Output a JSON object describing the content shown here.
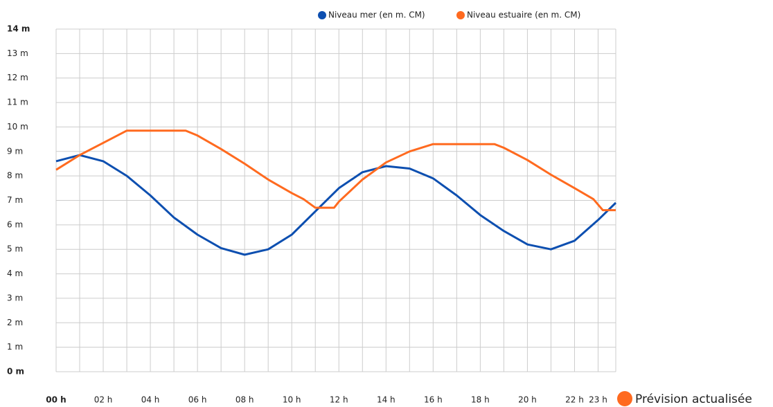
{
  "chart_data": {
    "type": "line",
    "xlim": [
      0,
      23.75
    ],
    "xticks": [
      {
        "value": 0,
        "label": "00 h"
      },
      {
        "value": 2,
        "label": "02 h"
      },
      {
        "value": 4,
        "label": "04 h"
      },
      {
        "value": 6,
        "label": "06 h"
      },
      {
        "value": 8,
        "label": "08 h"
      },
      {
        "value": 10,
        "label": "10 h"
      },
      {
        "value": 12,
        "label": "12 h"
      },
      {
        "value": 14,
        "label": "14 h"
      },
      {
        "value": 16,
        "label": "16 h"
      },
      {
        "value": 18,
        "label": "18 h"
      },
      {
        "value": 20,
        "label": "20 h"
      },
      {
        "value": 22,
        "label": "22 h"
      },
      {
        "value": 23,
        "label": "23 h"
      }
    ],
    "xminor_ticks": [
      1,
      3,
      5,
      7,
      9,
      11,
      13,
      15,
      17,
      19,
      21
    ],
    "ylim": [
      0,
      14
    ],
    "yticks": [
      {
        "value": 0,
        "label": "0 m"
      },
      {
        "value": 1,
        "label": "1 m"
      },
      {
        "value": 2,
        "label": "2 m"
      },
      {
        "value": 3,
        "label": "3 m"
      },
      {
        "value": 4,
        "label": "4 m"
      },
      {
        "value": 5,
        "label": "5 m"
      },
      {
        "value": 6,
        "label": "6 m"
      },
      {
        "value": 7,
        "label": "7 m"
      },
      {
        "value": 8,
        "label": "8 m"
      },
      {
        "value": 9,
        "label": "9 m"
      },
      {
        "value": 10,
        "label": "10 m"
      },
      {
        "value": 11,
        "label": "11 m"
      },
      {
        "value": 12,
        "label": "12 m"
      },
      {
        "value": 13,
        "label": "13 m"
      },
      {
        "value": 14,
        "label": "14 m"
      }
    ],
    "grid": true,
    "legend": "top",
    "series": [
      {
        "name": "Niveau mer (en m. CM)",
        "color": "#0d4fb0",
        "x": [
          0,
          1,
          2,
          3,
          4,
          5,
          6,
          7,
          8,
          9,
          10,
          11,
          12,
          13,
          14,
          15,
          16,
          17,
          18,
          19,
          20,
          21,
          22,
          23,
          23.75
        ],
        "values": [
          8.6,
          8.85,
          8.6,
          8.0,
          7.2,
          6.3,
          5.6,
          5.05,
          4.78,
          5.0,
          5.6,
          6.55,
          7.5,
          8.15,
          8.4,
          8.3,
          7.9,
          7.2,
          6.4,
          5.75,
          5.2,
          5.0,
          5.35,
          6.2,
          6.9
        ]
      },
      {
        "name": "Niveau estuaire (en m. CM)",
        "color": "#ff6a1f",
        "x": [
          0,
          1,
          2,
          3,
          4,
          5,
          5.5,
          6,
          7,
          8,
          9,
          10,
          10.5,
          11,
          11.8,
          12,
          13,
          14,
          15,
          16,
          17,
          18,
          18.6,
          19,
          20,
          21,
          22,
          22.8,
          23.2,
          23.75
        ],
        "values": [
          8.25,
          8.85,
          9.35,
          9.85,
          9.85,
          9.85,
          9.85,
          9.65,
          9.1,
          8.5,
          7.85,
          7.3,
          7.05,
          6.7,
          6.7,
          6.95,
          7.85,
          8.55,
          9.0,
          9.3,
          9.3,
          9.3,
          9.3,
          9.15,
          8.65,
          8.05,
          7.5,
          7.05,
          6.6,
          6.6
        ]
      }
    ],
    "annotation": "Prévision actualisée",
    "annotation_color": "#ff6a1f"
  }
}
